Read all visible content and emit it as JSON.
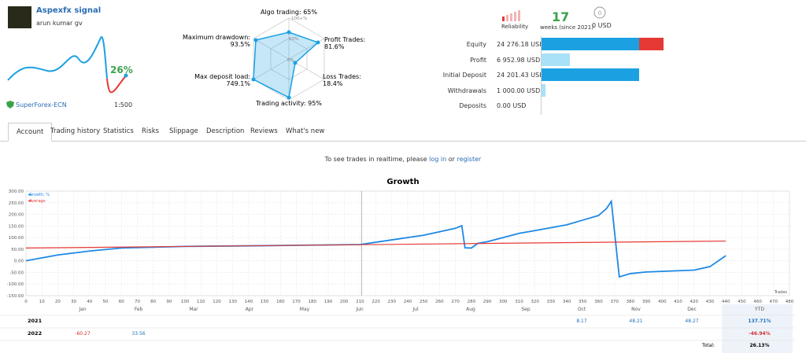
{
  "header": {
    "title": "Aspexfx signal",
    "author": "arun kumar gv",
    "growth": "26%",
    "broker": "SuperForex-ECN",
    "leverage": "1:500"
  },
  "radar": {
    "scale": [
      "100+%",
      "50%",
      "0%"
    ],
    "labels": [
      "Algo trading: 65%",
      "Profit Trades: 81.6%",
      "Loss Trades: 18.4%",
      "Trading activity: 95%",
      "Max deposit load: 749.1%",
      "Maximum drawdown: 93.5%"
    ]
  },
  "summary": {
    "reliability": "Reliability",
    "weeks": "17",
    "weeks_label": "weeks (since 2021)",
    "subscribers": "0 USD"
  },
  "account_bars": {
    "type": "bar",
    "color": "#1ba1e2",
    "categories": [
      "Equity",
      "Profit",
      "Initial Deposit",
      "Withdrawals",
      "Deposits"
    ],
    "values": [
      24276.18,
      6952.98,
      24201.43,
      1000.0,
      0.0
    ],
    "value_labels": [
      "24 276.18 USD",
      "6 952.98 USD",
      "24 201.43 USD",
      "1 000.00 USD",
      "0.00 USD"
    ],
    "xlim": [
      0,
      24276.18
    ]
  },
  "tabs": [
    "Account",
    "Trading history",
    "Statistics",
    "Risks",
    "Slippage",
    "Description",
    "Reviews",
    "What's new"
  ],
  "notice": {
    "text": "To see trades in realtime, please",
    "login": "log in",
    "or": "or",
    "register": "register"
  },
  "chart_data": {
    "type": "line",
    "title": "Growth",
    "x_label": "Trades",
    "xlim": [
      0,
      480
    ],
    "ylim": [
      -150,
      300
    ],
    "xticks": [
      0,
      10,
      20,
      30,
      40,
      50,
      60,
      70,
      80,
      90,
      100,
      110,
      120,
      130,
      140,
      150,
      160,
      170,
      180,
      190,
      200,
      210,
      220,
      230,
      240,
      250,
      260,
      270,
      280,
      290,
      300,
      310,
      320,
      330,
      340,
      350,
      360,
      370,
      380,
      390,
      400,
      410,
      420,
      430,
      440,
      450,
      460,
      470,
      480
    ],
    "yticks": [
      {
        "value": 300,
        "label": "300.00"
      },
      {
        "value": 250,
        "label": "250.00"
      },
      {
        "value": 200,
        "label": "200.00"
      },
      {
        "value": 150,
        "label": "150.00"
      },
      {
        "value": 100,
        "label": "100.00"
      },
      {
        "value": 50,
        "label": "50.00"
      },
      {
        "value": 0,
        "label": "0.00"
      },
      {
        "value": -50,
        "label": "-50.00"
      },
      {
        "value": -100,
        "label": "-100.00"
      },
      {
        "value": -150,
        "label": "-150.00"
      }
    ],
    "grid": true,
    "legend": "top-left",
    "series": [
      {
        "name": "Growth, %",
        "color": "#1e88e5",
        "x": [
          0,
          20,
          40,
          60,
          100,
          150,
          210,
          230,
          250,
          260,
          270,
          274,
          276,
          280,
          284,
          290,
          300,
          310,
          320,
          340,
          350,
          360,
          365,
          368,
          373,
          380,
          390,
          420,
          430,
          440
        ],
        "values": [
          0,
          25,
          42,
          55,
          62,
          65,
          70,
          90,
          110,
          125,
          140,
          151,
          56,
          55,
          75,
          82,
          100,
          118,
          130,
          155,
          175,
          195,
          225,
          256,
          -69,
          -55,
          -48,
          -40,
          -25,
          22
        ]
      },
      {
        "name": "Average",
        "color": "#e53935",
        "x": [
          0,
          440
        ],
        "values": [
          55,
          85
        ]
      }
    ]
  },
  "year_table": {
    "columns": [
      "Jan",
      "Feb",
      "Mar",
      "Apr",
      "May",
      "Jun",
      "Jul",
      "Aug",
      "Sep",
      "Oct",
      "Nov",
      "Dec",
      "YTD"
    ],
    "rows": [
      {
        "year": "2021",
        "cells": [
          null,
          null,
          null,
          null,
          null,
          null,
          null,
          null,
          null,
          "8.17",
          "48.21",
          "48.27",
          "137.71%"
        ]
      },
      {
        "year": "2022",
        "cells": [
          "-60.27",
          "33.56",
          null,
          null,
          null,
          null,
          null,
          null,
          null,
          null,
          null,
          null,
          "-46.94%"
        ]
      }
    ],
    "total_label": "Total:",
    "total": "26.13%"
  }
}
